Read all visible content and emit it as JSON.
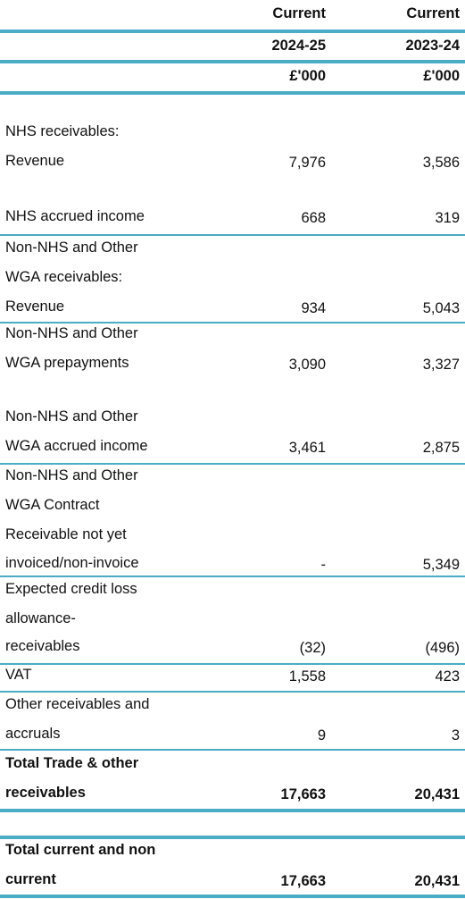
{
  "header": {
    "col1_line1": "Current",
    "col2_line1": "Current",
    "col1_year": "2024-25",
    "col2_year": "2023-24",
    "col1_unit": "£'000",
    "col2_unit": "£'000"
  },
  "rows": [
    {
      "lines": [
        "NHS receivables:",
        "Revenue"
      ],
      "v1": "7,976",
      "v2": "3,586"
    },
    {
      "lines": [
        "NHS accrued income"
      ],
      "v1": "668",
      "v2": "319"
    },
    {
      "lines": [
        "Non-NHS and Other",
        "WGA receivables:",
        "Revenue"
      ],
      "v1": "934",
      "v2": "5,043"
    },
    {
      "lines": [
        "Non-NHS and Other",
        "WGA prepayments"
      ],
      "v1": "3,090",
      "v2": "3,327"
    },
    {
      "lines": [
        "Non-NHS and Other",
        "WGA accrued income"
      ],
      "v1": "3,461",
      "v2": "2,875"
    },
    {
      "lines": [
        "Non-NHS and Other",
        "WGA Contract",
        "Receivable not yet",
        "invoiced/non-invoice"
      ],
      "v1": "-",
      "v2": "5,349"
    },
    {
      "lines": [
        "Expected credit loss",
        "allowance-",
        "receivables"
      ],
      "v1": "(32)",
      "v2": "(496)"
    },
    {
      "lines": [
        "VAT"
      ],
      "v1": "1,558",
      "v2": "423"
    },
    {
      "lines": [
        "Other receivables and",
        "accruals"
      ],
      "v1": "9",
      "v2": "3"
    },
    {
      "lines": [
        "Total Trade & other",
        "receivables"
      ],
      "v1": "17,663",
      "v2": "20,431"
    },
    {
      "lines": [
        "Total current and non",
        "current"
      ],
      "v1": "17,663",
      "v2": "20,431"
    }
  ]
}
